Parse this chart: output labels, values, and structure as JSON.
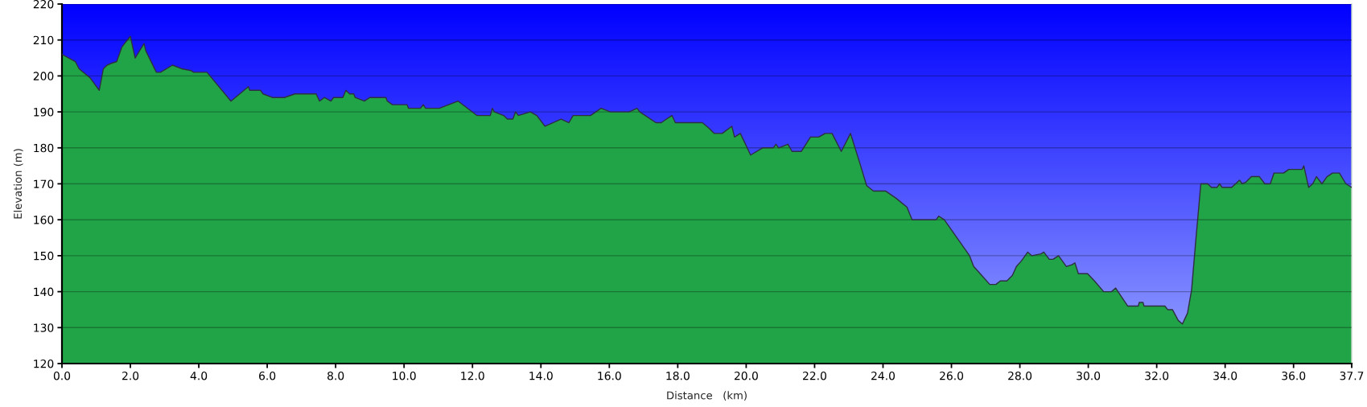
{
  "chart_data": {
    "type": "area",
    "xlabel": "Distance   (km)",
    "ylabel": "Elevation (m)",
    "x": [
      0,
      0.39,
      0.5,
      0.82,
      1.09,
      1.21,
      1.32,
      1.44,
      1.6,
      1.75,
      1.87,
      2.0,
      2.14,
      2.4,
      2.45,
      2.76,
      2.88,
      3.23,
      3.5,
      3.77,
      3.85,
      4.24,
      4.94,
      5.45,
      5.49,
      5.8,
      5.88,
      6.15,
      6.5,
      6.81,
      7.43,
      7.53,
      7.67,
      7.86,
      7.94,
      8.21,
      8.3,
      8.41,
      8.53,
      8.57,
      8.84,
      9.0,
      9.47,
      9.51,
      9.66,
      10.09,
      10.13,
      10.48,
      10.56,
      10.63,
      11.03,
      11.58,
      12.13,
      12.52,
      12.58,
      12.64,
      12.91,
      13.02,
      13.18,
      13.26,
      13.34,
      13.69,
      13.88,
      14.12,
      14.59,
      14.82,
      14.94,
      15.45,
      15.76,
      16.03,
      16.58,
      16.81,
      16.89,
      17.36,
      17.52,
      17.67,
      17.83,
      17.93,
      18.72,
      18.91,
      19.07,
      19.3,
      19.58,
      19.66,
      19.83,
      19.88,
      20.13,
      20.48,
      20.79,
      20.87,
      20.95,
      21.22,
      21.34,
      21.61,
      21.88,
      22.12,
      22.31,
      22.51,
      22.78,
      23.05,
      23.33,
      23.52,
      23.72,
      24.07,
      24.38,
      24.7,
      24.85,
      25.55,
      25.63,
      25.79,
      26.53,
      26.65,
      26.84,
      27.12,
      27.3,
      27.43,
      27.62,
      27.78,
      27.9,
      28.04,
      28.23,
      28.35,
      28.62,
      28.7,
      28.86,
      28.97,
      29.13,
      29.36,
      29.52,
      29.61,
      29.71,
      29.98,
      30.18,
      30.45,
      30.68,
      30.8,
      31.15,
      31.46,
      31.49,
      31.6,
      31.63,
      32.24,
      32.32,
      32.46,
      32.63,
      32.75,
      32.9,
      33.02,
      33.14,
      33.29,
      33.49,
      33.6,
      33.76,
      33.84,
      33.91,
      34.19,
      34.42,
      34.5,
      34.61,
      34.77,
      35.0,
      35.16,
      35.32,
      35.43,
      35.71,
      35.86,
      36.25,
      36.3,
      36.44,
      36.56,
      36.67,
      36.83,
      36.98,
      37.14,
      37.34,
      37.53,
      37.7
    ],
    "values": [
      206,
      204,
      202,
      199.5,
      196,
      202,
      203,
      203.5,
      204,
      208,
      209.5,
      211,
      205,
      209,
      207,
      201,
      201,
      203,
      202,
      201.5,
      201,
      201,
      193,
      197,
      196,
      196,
      195,
      194,
      194,
      195,
      195,
      193,
      194,
      193,
      194,
      194,
      196,
      195,
      195,
      194,
      193,
      194,
      194,
      193,
      192,
      192,
      191,
      191,
      192,
      191,
      191,
      193,
      189,
      189,
      191,
      190,
      189,
      188,
      188,
      190,
      189,
      190,
      189,
      186,
      188,
      187,
      189,
      189,
      191,
      190,
      190,
      191,
      190,
      187,
      187,
      188,
      189,
      187,
      187,
      185.5,
      184,
      184,
      186,
      183,
      184,
      183,
      178,
      180,
      180,
      181,
      180,
      181,
      179,
      179,
      183,
      183,
      184,
      184,
      179,
      184,
      175.5,
      169.5,
      168,
      168,
      166,
      163.5,
      160,
      160,
      161,
      160,
      150,
      147,
      145,
      142,
      142,
      143,
      143,
      144.5,
      147,
      148.5,
      151,
      150,
      150.5,
      151,
      149,
      149,
      150,
      147,
      147.5,
      148,
      145,
      145,
      143,
      140,
      140,
      141,
      136,
      136,
      137,
      137,
      136,
      136,
      135,
      135,
      132,
      131,
      134,
      140.5,
      154,
      170,
      170,
      169,
      169,
      170,
      169,
      169,
      171,
      170,
      170.5,
      172,
      172,
      170,
      170,
      173,
      173,
      174,
      174,
      175,
      169,
      170,
      172,
      170,
      172,
      173,
      173,
      170,
      169
    ],
    "color": "#21a447",
    "xlim": [
      0,
      37.7
    ],
    "ylim": [
      120,
      220
    ],
    "xticks": [
      {
        "value": 0,
        "label": "0.0"
      },
      {
        "value": 2,
        "label": "2.0"
      },
      {
        "value": 4,
        "label": "4.0"
      },
      {
        "value": 6,
        "label": "6.0"
      },
      {
        "value": 8,
        "label": "8.0"
      },
      {
        "value": 10,
        "label": "10.0"
      },
      {
        "value": 12,
        "label": "12.0"
      },
      {
        "value": 14,
        "label": "14.0"
      },
      {
        "value": 16,
        "label": "16.0"
      },
      {
        "value": 18,
        "label": "18.0"
      },
      {
        "value": 20,
        "label": "20.0"
      },
      {
        "value": 22,
        "label": "22.0"
      },
      {
        "value": 24,
        "label": "24.0"
      },
      {
        "value": 26,
        "label": "26.0"
      },
      {
        "value": 28,
        "label": "28.0"
      },
      {
        "value": 30,
        "label": "30.0"
      },
      {
        "value": 32,
        "label": "32.0"
      },
      {
        "value": 34,
        "label": "34.0"
      },
      {
        "value": 36,
        "label": "36.0"
      },
      {
        "value": 37.7,
        "label": "37.7"
      }
    ],
    "yticks": [
      120,
      130,
      140,
      150,
      160,
      170,
      180,
      190,
      200,
      210,
      220
    ],
    "grid": "y"
  }
}
